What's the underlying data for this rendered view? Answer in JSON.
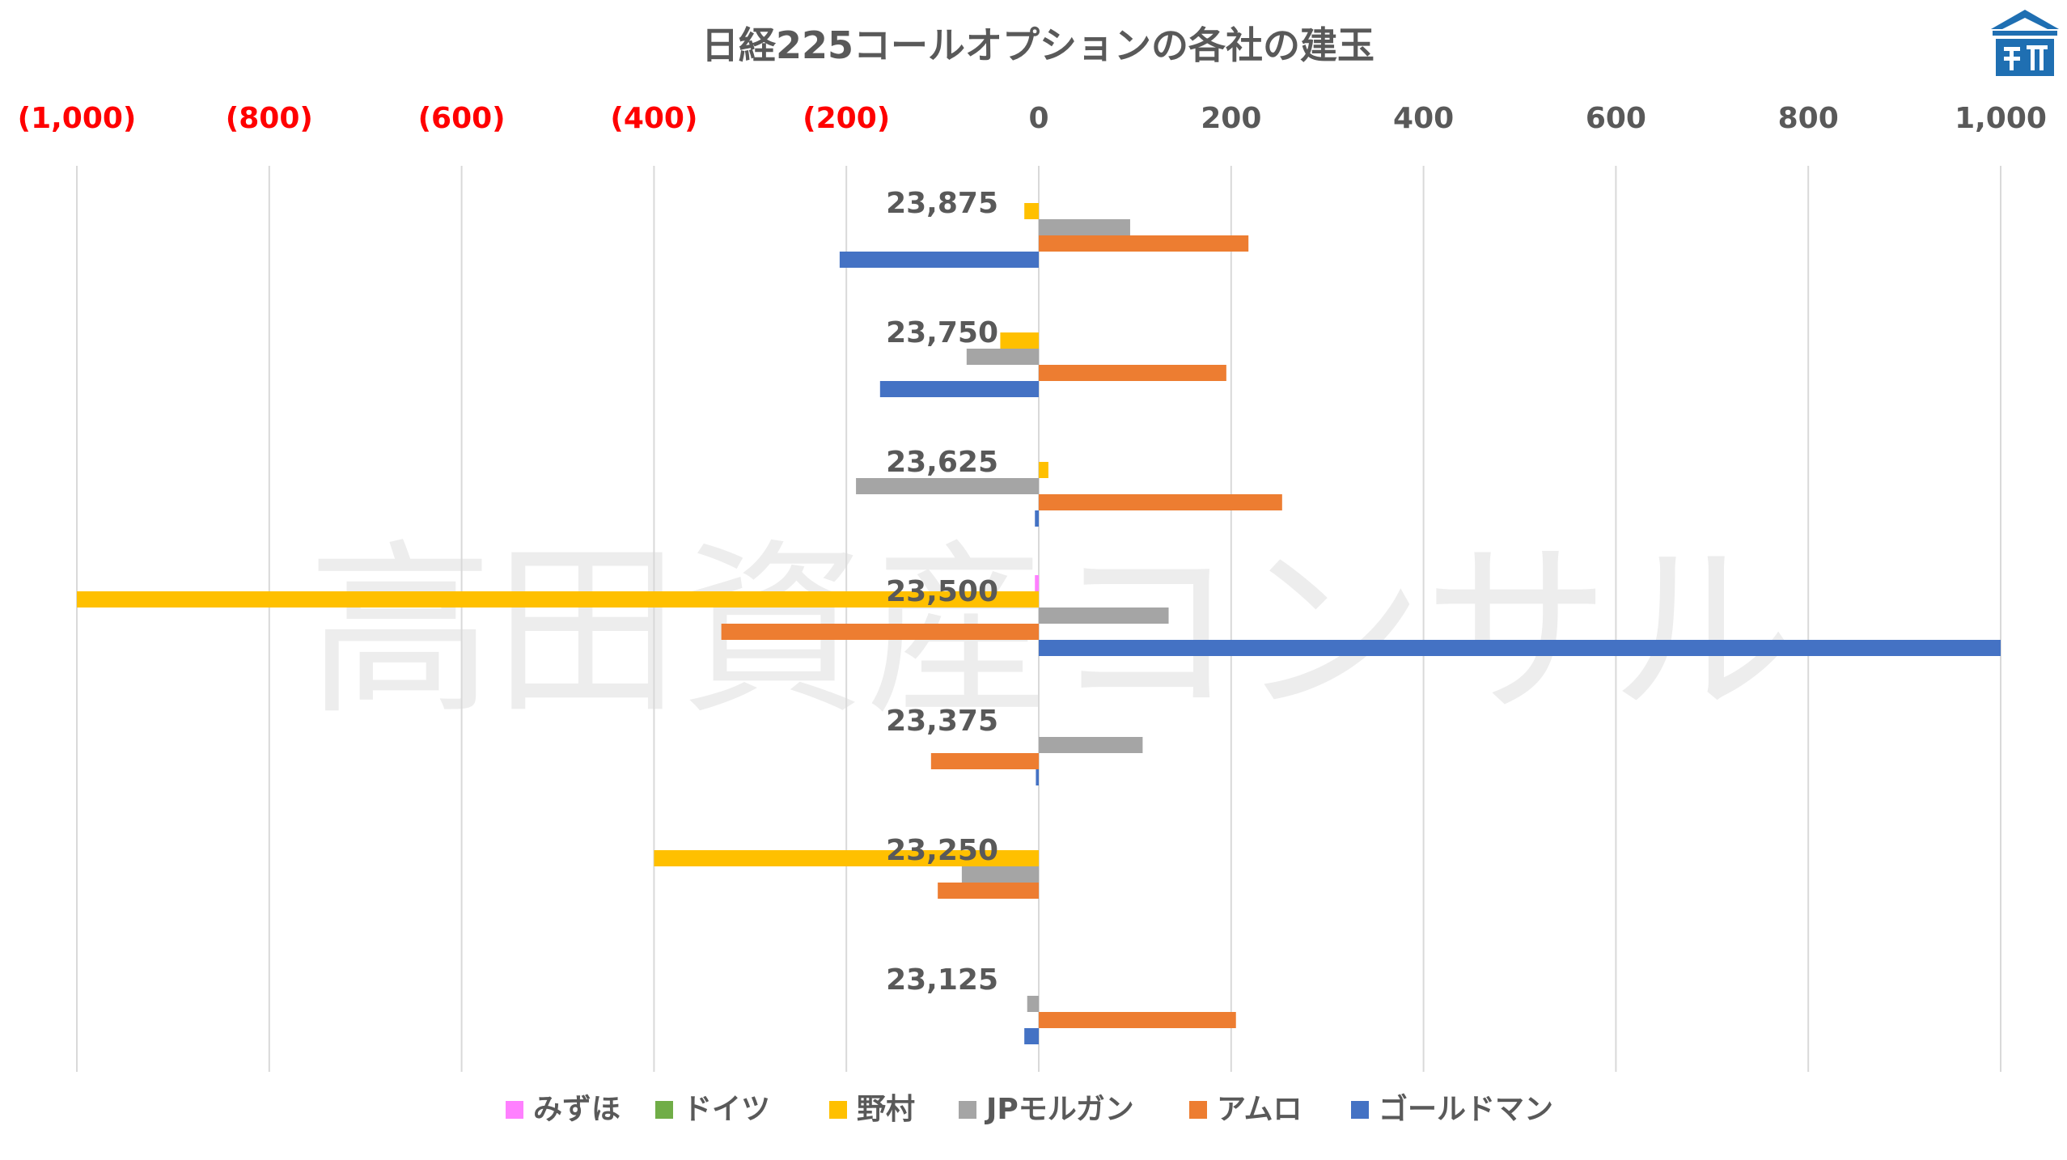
{
  "chart_data": {
    "type": "bar",
    "orientation": "horizontal",
    "title": "日経225コールオプションの各社の建玉",
    "watermark": "高田資産コンサル",
    "xlim": [
      -1000,
      1000
    ],
    "x_ticks": [
      -1000,
      -800,
      -600,
      -400,
      -200,
      0,
      200,
      400,
      600,
      800,
      1000
    ],
    "x_tick_labels": [
      "(1,000)",
      "(800)",
      "(600)",
      "(400)",
      "(200)",
      "0",
      "200",
      "400",
      "600",
      "800",
      "1,000"
    ],
    "negative_tick_color": "#ff0000",
    "positive_tick_color": "#595959",
    "xaxis_position": "top",
    "grid": true,
    "legend_position": "bottom",
    "categories": [
      "23,875",
      "23,750",
      "23,625",
      "23,500",
      "23,375",
      "23,250",
      "23,125"
    ],
    "series": [
      {
        "name": "みずほ",
        "color": "#ff80ff",
        "values": [
          0,
          0,
          0,
          -4,
          0,
          0,
          0
        ]
      },
      {
        "name": "ドイツ",
        "color": "#70ad47",
        "values": [
          0,
          0,
          0,
          0,
          0,
          0,
          0
        ]
      },
      {
        "name": "野村",
        "color": "#ffc000",
        "values": [
          -15,
          -40,
          10,
          -1000,
          0,
          -400,
          0
        ]
      },
      {
        "name": "JPモルガン",
        "color": "#a5a5a5",
        "values": [
          95,
          -75,
          -190,
          135,
          108,
          -80,
          -12
        ]
      },
      {
        "name": "アムロ",
        "color": "#ed7d31",
        "values": [
          218,
          195,
          253,
          -330,
          -112,
          -105,
          205
        ]
      },
      {
        "name": "ゴールドマン",
        "color": "#4472c4",
        "values": [
          -207,
          -165,
          -4,
          1000,
          -3,
          0,
          -15
        ]
      }
    ]
  }
}
